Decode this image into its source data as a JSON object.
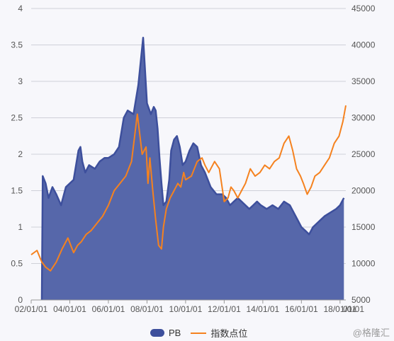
{
  "chart_data": {
    "type": "area",
    "colors": {
      "pb": "#3d4f9c",
      "pb_fill": "#5667aa",
      "index": "#f5821f",
      "grid": "#cfd0d8"
    },
    "xaxis": {
      "ticks": [
        "02/01/01",
        "04/01/01",
        "06/01/01",
        "08/01/01",
        "10/01/01",
        "12/01/01",
        "14/01/01",
        "16/01/01",
        "18/01/01"
      ],
      "last_tick": "01/01",
      "range": [
        2002.0,
        2018.3
      ]
    },
    "yaxis_left": {
      "ticks": [
        "0",
        "0.5",
        "1",
        "1.5",
        "2",
        "2.5",
        "3",
        "3.5",
        "4"
      ],
      "ylim": [
        0,
        4
      ]
    },
    "yaxis_right": {
      "ticks": [
        "5000",
        "10000",
        "15000",
        "20000",
        "25000",
        "30000",
        "35000",
        "40000",
        "45000"
      ],
      "ylim": [
        5000,
        45000
      ]
    },
    "series": [
      {
        "name": "PB",
        "axis": "left",
        "type": "area",
        "x": [
          2002.55,
          2002.6,
          2002.75,
          2002.9,
          2003.1,
          2003.3,
          2003.55,
          2003.8,
          2004.2,
          2004.45,
          2004.55,
          2004.65,
          2004.8,
          2005.0,
          2005.3,
          2005.55,
          2005.8,
          2006.0,
          2006.3,
          2006.55,
          2006.8,
          2007.0,
          2007.3,
          2007.55,
          2007.8,
          2008.0,
          2008.2,
          2008.35,
          2008.45,
          2008.55,
          2008.65,
          2008.75,
          2008.85,
          2009.0,
          2009.15,
          2009.25,
          2009.4,
          2009.55,
          2009.7,
          2009.85,
          2010.0,
          2010.2,
          2010.4,
          2010.6,
          2010.8,
          2011.0,
          2011.3,
          2011.6,
          2011.9,
          2012.1,
          2012.3,
          2012.5,
          2012.7,
          2012.9,
          2013.1,
          2013.3,
          2013.5,
          2013.7,
          2013.9,
          2014.2,
          2014.5,
          2014.8,
          2015.1,
          2015.4,
          2015.7,
          2016.0,
          2016.2,
          2016.4,
          2016.6,
          2016.8,
          2017.0,
          2017.2,
          2017.5,
          2017.8,
          2018.0,
          2018.2
        ],
        "values": [
          0.0,
          1.7,
          1.6,
          1.4,
          1.55,
          1.45,
          1.3,
          1.55,
          1.65,
          2.05,
          2.1,
          1.9,
          1.75,
          1.85,
          1.8,
          1.9,
          1.95,
          1.95,
          2.0,
          2.1,
          2.5,
          2.6,
          2.55,
          2.95,
          3.6,
          2.7,
          2.55,
          2.65,
          2.6,
          2.35,
          1.95,
          1.6,
          1.3,
          1.35,
          1.65,
          2.05,
          2.2,
          2.25,
          2.1,
          1.85,
          1.9,
          2.05,
          2.15,
          2.1,
          1.85,
          1.75,
          1.55,
          1.45,
          1.45,
          1.4,
          1.3,
          1.35,
          1.4,
          1.35,
          1.3,
          1.25,
          1.3,
          1.35,
          1.3,
          1.25,
          1.3,
          1.25,
          1.35,
          1.3,
          1.15,
          1.0,
          0.95,
          0.9,
          1.0,
          1.05,
          1.1,
          1.15,
          1.2,
          1.25,
          1.3,
          1.4
        ]
      },
      {
        "name": "指数点位",
        "axis": "right",
        "type": "line",
        "x": [
          2002.0,
          2002.3,
          2002.55,
          2002.75,
          2003.0,
          2003.3,
          2003.6,
          2003.9,
          2004.2,
          2004.4,
          2004.6,
          2004.85,
          2005.1,
          2005.4,
          2005.7,
          2006.0,
          2006.3,
          2006.6,
          2006.9,
          2007.2,
          2007.5,
          2007.75,
          2007.95,
          2008.05,
          2008.15,
          2008.3,
          2008.45,
          2008.6,
          2008.75,
          2008.85,
          2009.0,
          2009.2,
          2009.4,
          2009.6,
          2009.75,
          2009.9,
          2010.0,
          2010.3,
          2010.6,
          2010.85,
          2011.0,
          2011.2,
          2011.5,
          2011.75,
          2012.0,
          2012.2,
          2012.35,
          2012.5,
          2012.7,
          2012.9,
          2013.1,
          2013.35,
          2013.6,
          2013.85,
          2014.1,
          2014.35,
          2014.6,
          2014.85,
          2015.1,
          2015.35,
          2015.55,
          2015.75,
          2015.95,
          2016.1,
          2016.3,
          2016.5,
          2016.7,
          2016.95,
          2017.2,
          2017.45,
          2017.7,
          2017.95,
          2018.15,
          2018.3
        ],
        "values": [
          11200,
          11800,
          10200,
          9500,
          9000,
          10200,
          12000,
          13500,
          11500,
          12500,
          13000,
          14000,
          14500,
          15500,
          16500,
          18000,
          20000,
          21000,
          22000,
          24000,
          30500,
          25000,
          26000,
          21000,
          24500,
          20000,
          16000,
          12500,
          12000,
          15000,
          17500,
          19000,
          20000,
          21000,
          20500,
          22500,
          21500,
          22000,
          24000,
          24500,
          23500,
          22500,
          24000,
          23000,
          18500,
          19000,
          20500,
          20000,
          19000,
          20000,
          21000,
          23000,
          22000,
          22500,
          23500,
          23000,
          24000,
          24500,
          26500,
          27500,
          25500,
          23000,
          22000,
          21000,
          19500,
          20500,
          22000,
          22500,
          23500,
          24500,
          26500,
          27500,
          29500,
          31700
        ]
      }
    ],
    "legend_position": "bottom-center",
    "grid": true
  },
  "legend": {
    "pb_label": "PB",
    "index_label": "指数点位"
  },
  "watermark": "@格隆汇"
}
